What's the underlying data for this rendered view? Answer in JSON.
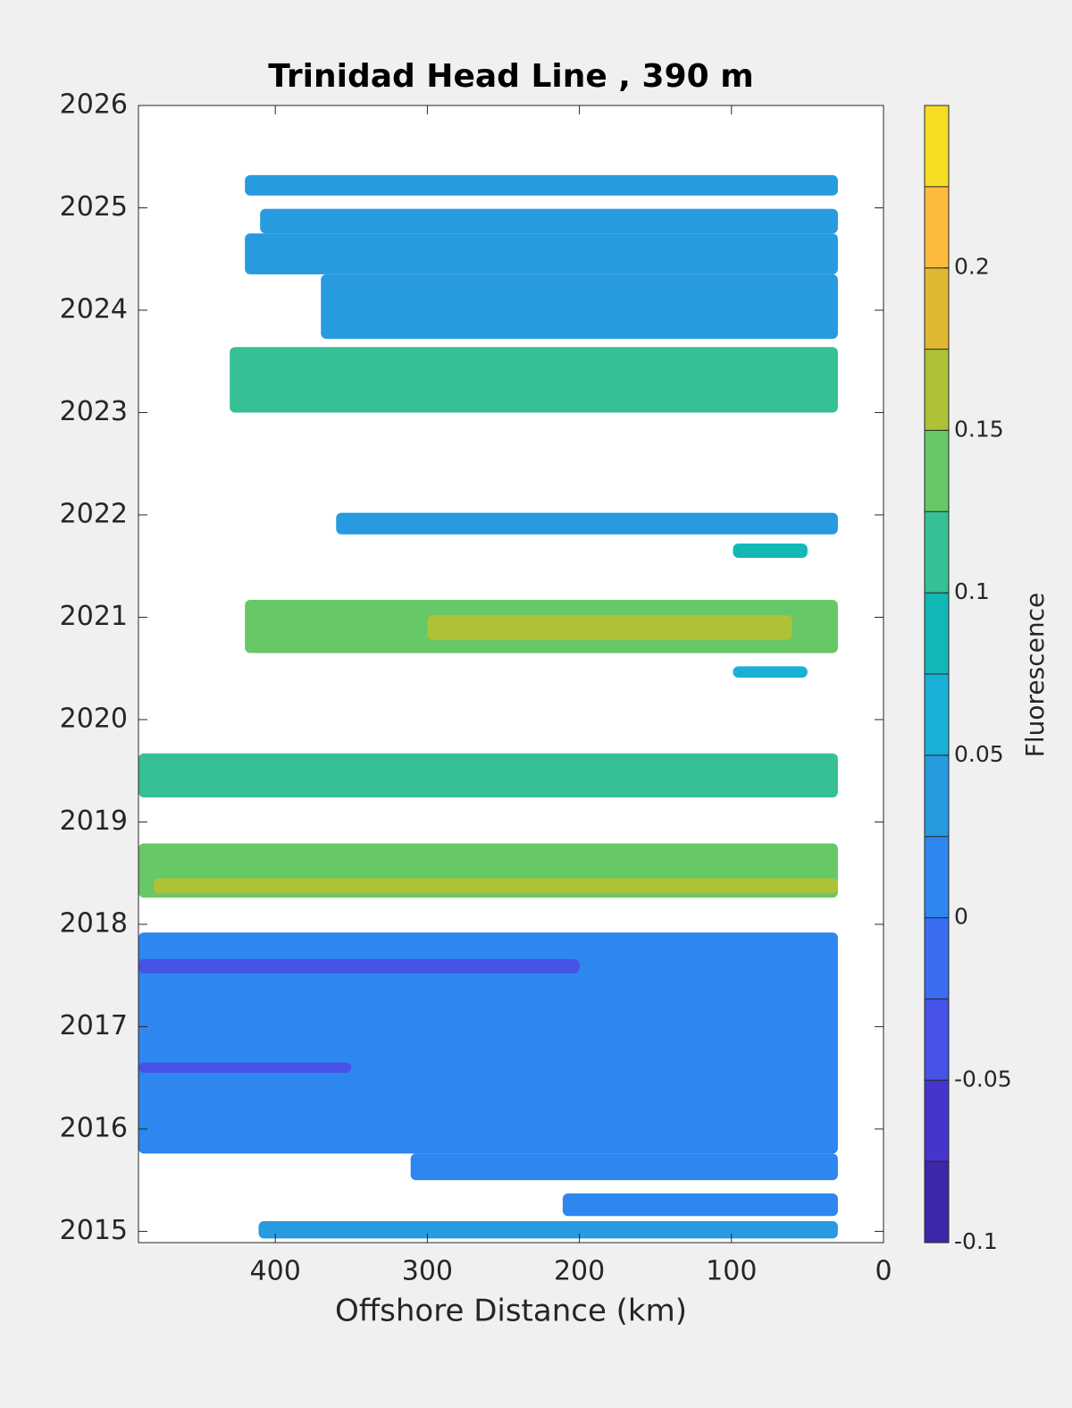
{
  "chart_data": {
    "type": "contour",
    "title": "Trinidad Head Line , 390 m",
    "xlabel": "Offshore Distance (km)",
    "xlim": [
      490,
      0
    ],
    "xticks": [
      400,
      300,
      200,
      100,
      0
    ],
    "ylim": [
      2014.89,
      2026
    ],
    "yticks": [
      2015,
      2016,
      2017,
      2018,
      2019,
      2020,
      2021,
      2022,
      2023,
      2024,
      2025,
      2026
    ],
    "colorbar": {
      "label": "Fluorescence",
      "levels": [
        -0.1,
        -0.075,
        -0.05,
        -0.025,
        0,
        0.025,
        0.05,
        0.075,
        0.1,
        0.125,
        0.15,
        0.175,
        0.2,
        0.225,
        0.25
      ],
      "colors": [
        "#3e26a8",
        "#4436cc",
        "#4653e6",
        "#3b6df3",
        "#2e86ef",
        "#279ae0",
        "#18b0d6",
        "#12b8b6",
        "#36c095",
        "#66c866",
        "#aec137",
        "#deb830",
        "#fdbb3d",
        "#f5dd24"
      ],
      "ticks": [
        -0.1,
        -0.05,
        0,
        0.05,
        0.1,
        0.15,
        0.2
      ]
    },
    "regions": [
      {
        "x": [
          420,
          30
        ],
        "y": [
          2025.12,
          2025.32
        ],
        "value": 0.03
      },
      {
        "x": [
          410,
          30
        ],
        "y": [
          2024.75,
          2024.99
        ],
        "value": 0.04
      },
      {
        "x": [
          420,
          30
        ],
        "y": [
          2024.35,
          2024.75
        ],
        "value": 0.035
      },
      {
        "x": [
          370,
          30
        ],
        "y": [
          2023.72,
          2024.35
        ],
        "value": 0.035
      },
      {
        "x": [
          430,
          30
        ],
        "y": [
          2023.0,
          2023.64
        ],
        "value": 0.11
      },
      {
        "x": [
          360,
          30
        ],
        "y": [
          2021.81,
          2022.02
        ],
        "value": 0.035
      },
      {
        "x": [
          99,
          50
        ],
        "y": [
          2021.58,
          2021.72
        ],
        "value": 0.09
      },
      {
        "x": [
          420,
          30
        ],
        "y": [
          2020.65,
          2021.17
        ],
        "value": 0.14
      },
      {
        "x": [
          300,
          60
        ],
        "y": [
          2020.78,
          2021.02
        ],
        "value": 0.16
      },
      {
        "x": [
          99,
          50
        ],
        "y": [
          2020.41,
          2020.52
        ],
        "value": 0.05
      },
      {
        "x": [
          490,
          30
        ],
        "y": [
          2019.24,
          2019.67
        ],
        "value": 0.12
      },
      {
        "x": [
          490,
          30
        ],
        "y": [
          2018.26,
          2018.79
        ],
        "value": 0.14
      },
      {
        "x": [
          480,
          30
        ],
        "y": [
          2018.3,
          2018.45
        ],
        "value": 0.16
      },
      {
        "x": [
          490,
          30
        ],
        "y": [
          2015.76,
          2017.92
        ],
        "value": 0.015
      },
      {
        "x": [
          490,
          200
        ],
        "y": [
          2017.52,
          2017.66
        ],
        "value": -0.03
      },
      {
        "x": [
          490,
          350
        ],
        "y": [
          2016.55,
          2016.65
        ],
        "value": -0.04
      },
      {
        "x": [
          311,
          30
        ],
        "y": [
          2015.5,
          2015.76
        ],
        "value": 0.01
      },
      {
        "x": [
          211,
          30
        ],
        "y": [
          2015.15,
          2015.37
        ],
        "value": 0.02
      },
      {
        "x": [
          411,
          30
        ],
        "y": [
          2014.93,
          2015.1
        ],
        "value": 0.03
      }
    ]
  }
}
